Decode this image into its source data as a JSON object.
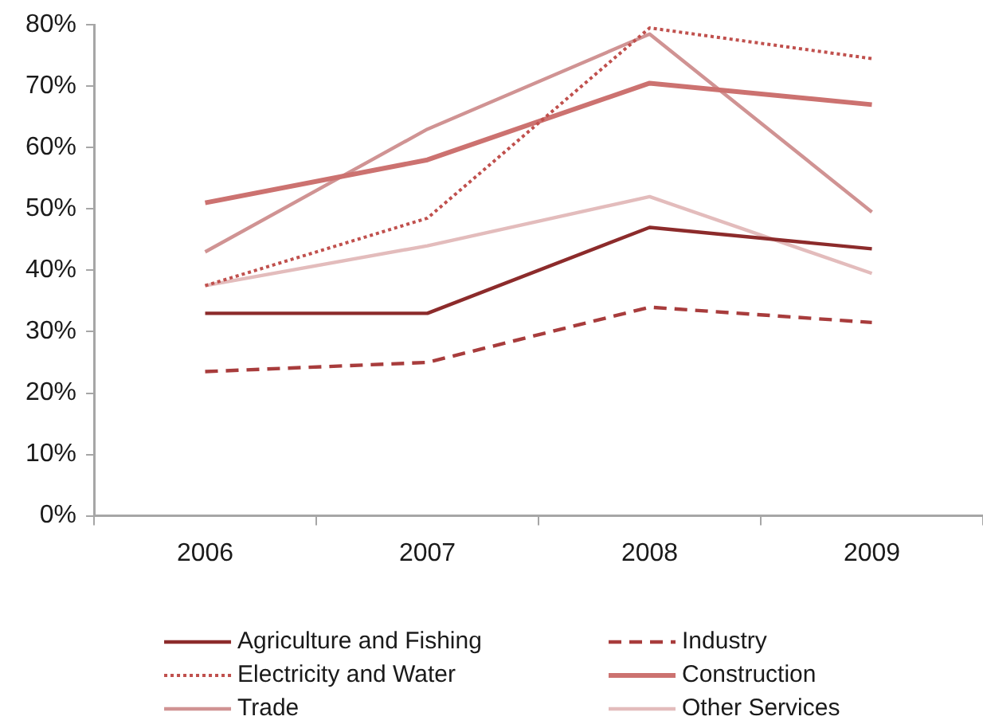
{
  "chart_data": {
    "type": "line",
    "categories": [
      "2006",
      "2007",
      "2008",
      "2009"
    ],
    "series": [
      {
        "name": "Agriculture and Fishing",
        "color": "#8c2b2b",
        "values": [
          33,
          33,
          47,
          43.5
        ],
        "line_style": "solid"
      },
      {
        "name": "Industry",
        "color": "#a83c3c",
        "values": [
          23.5,
          25,
          34,
          31.5
        ],
        "line_style": "dashed"
      },
      {
        "name": "Electricity and Water",
        "color": "#c0504d",
        "values": [
          37.5,
          48.5,
          79.5,
          74.5
        ],
        "line_style": "dotted"
      },
      {
        "name": "Construction",
        "color": "#cc7270",
        "values": [
          51,
          58,
          70.5,
          67
        ],
        "line_style": "solid"
      },
      {
        "name": "Trade",
        "color": "#d09393",
        "values": [
          43,
          63,
          78.5,
          49.5
        ],
        "line_style": "solid"
      },
      {
        "name": "Other Services",
        "color": "#e3bcbc",
        "values": [
          37.5,
          44,
          52,
          39.5
        ],
        "line_style": "solid"
      }
    ],
    "ylim": [
      0,
      80
    ],
    "yticks": [
      {
        "value": 0,
        "label": "0%"
      },
      {
        "value": 10,
        "label": "10%"
      },
      {
        "value": 20,
        "label": "20%"
      },
      {
        "value": 30,
        "label": "30%"
      },
      {
        "value": 40,
        "label": "40%"
      },
      {
        "value": 50,
        "label": "50%"
      },
      {
        "value": 60,
        "label": "60%"
      },
      {
        "value": 70,
        "label": "70%"
      },
      {
        "value": 80,
        "label": "80%"
      }
    ],
    "grid": false,
    "legend": "bottom",
    "marker": "none"
  }
}
